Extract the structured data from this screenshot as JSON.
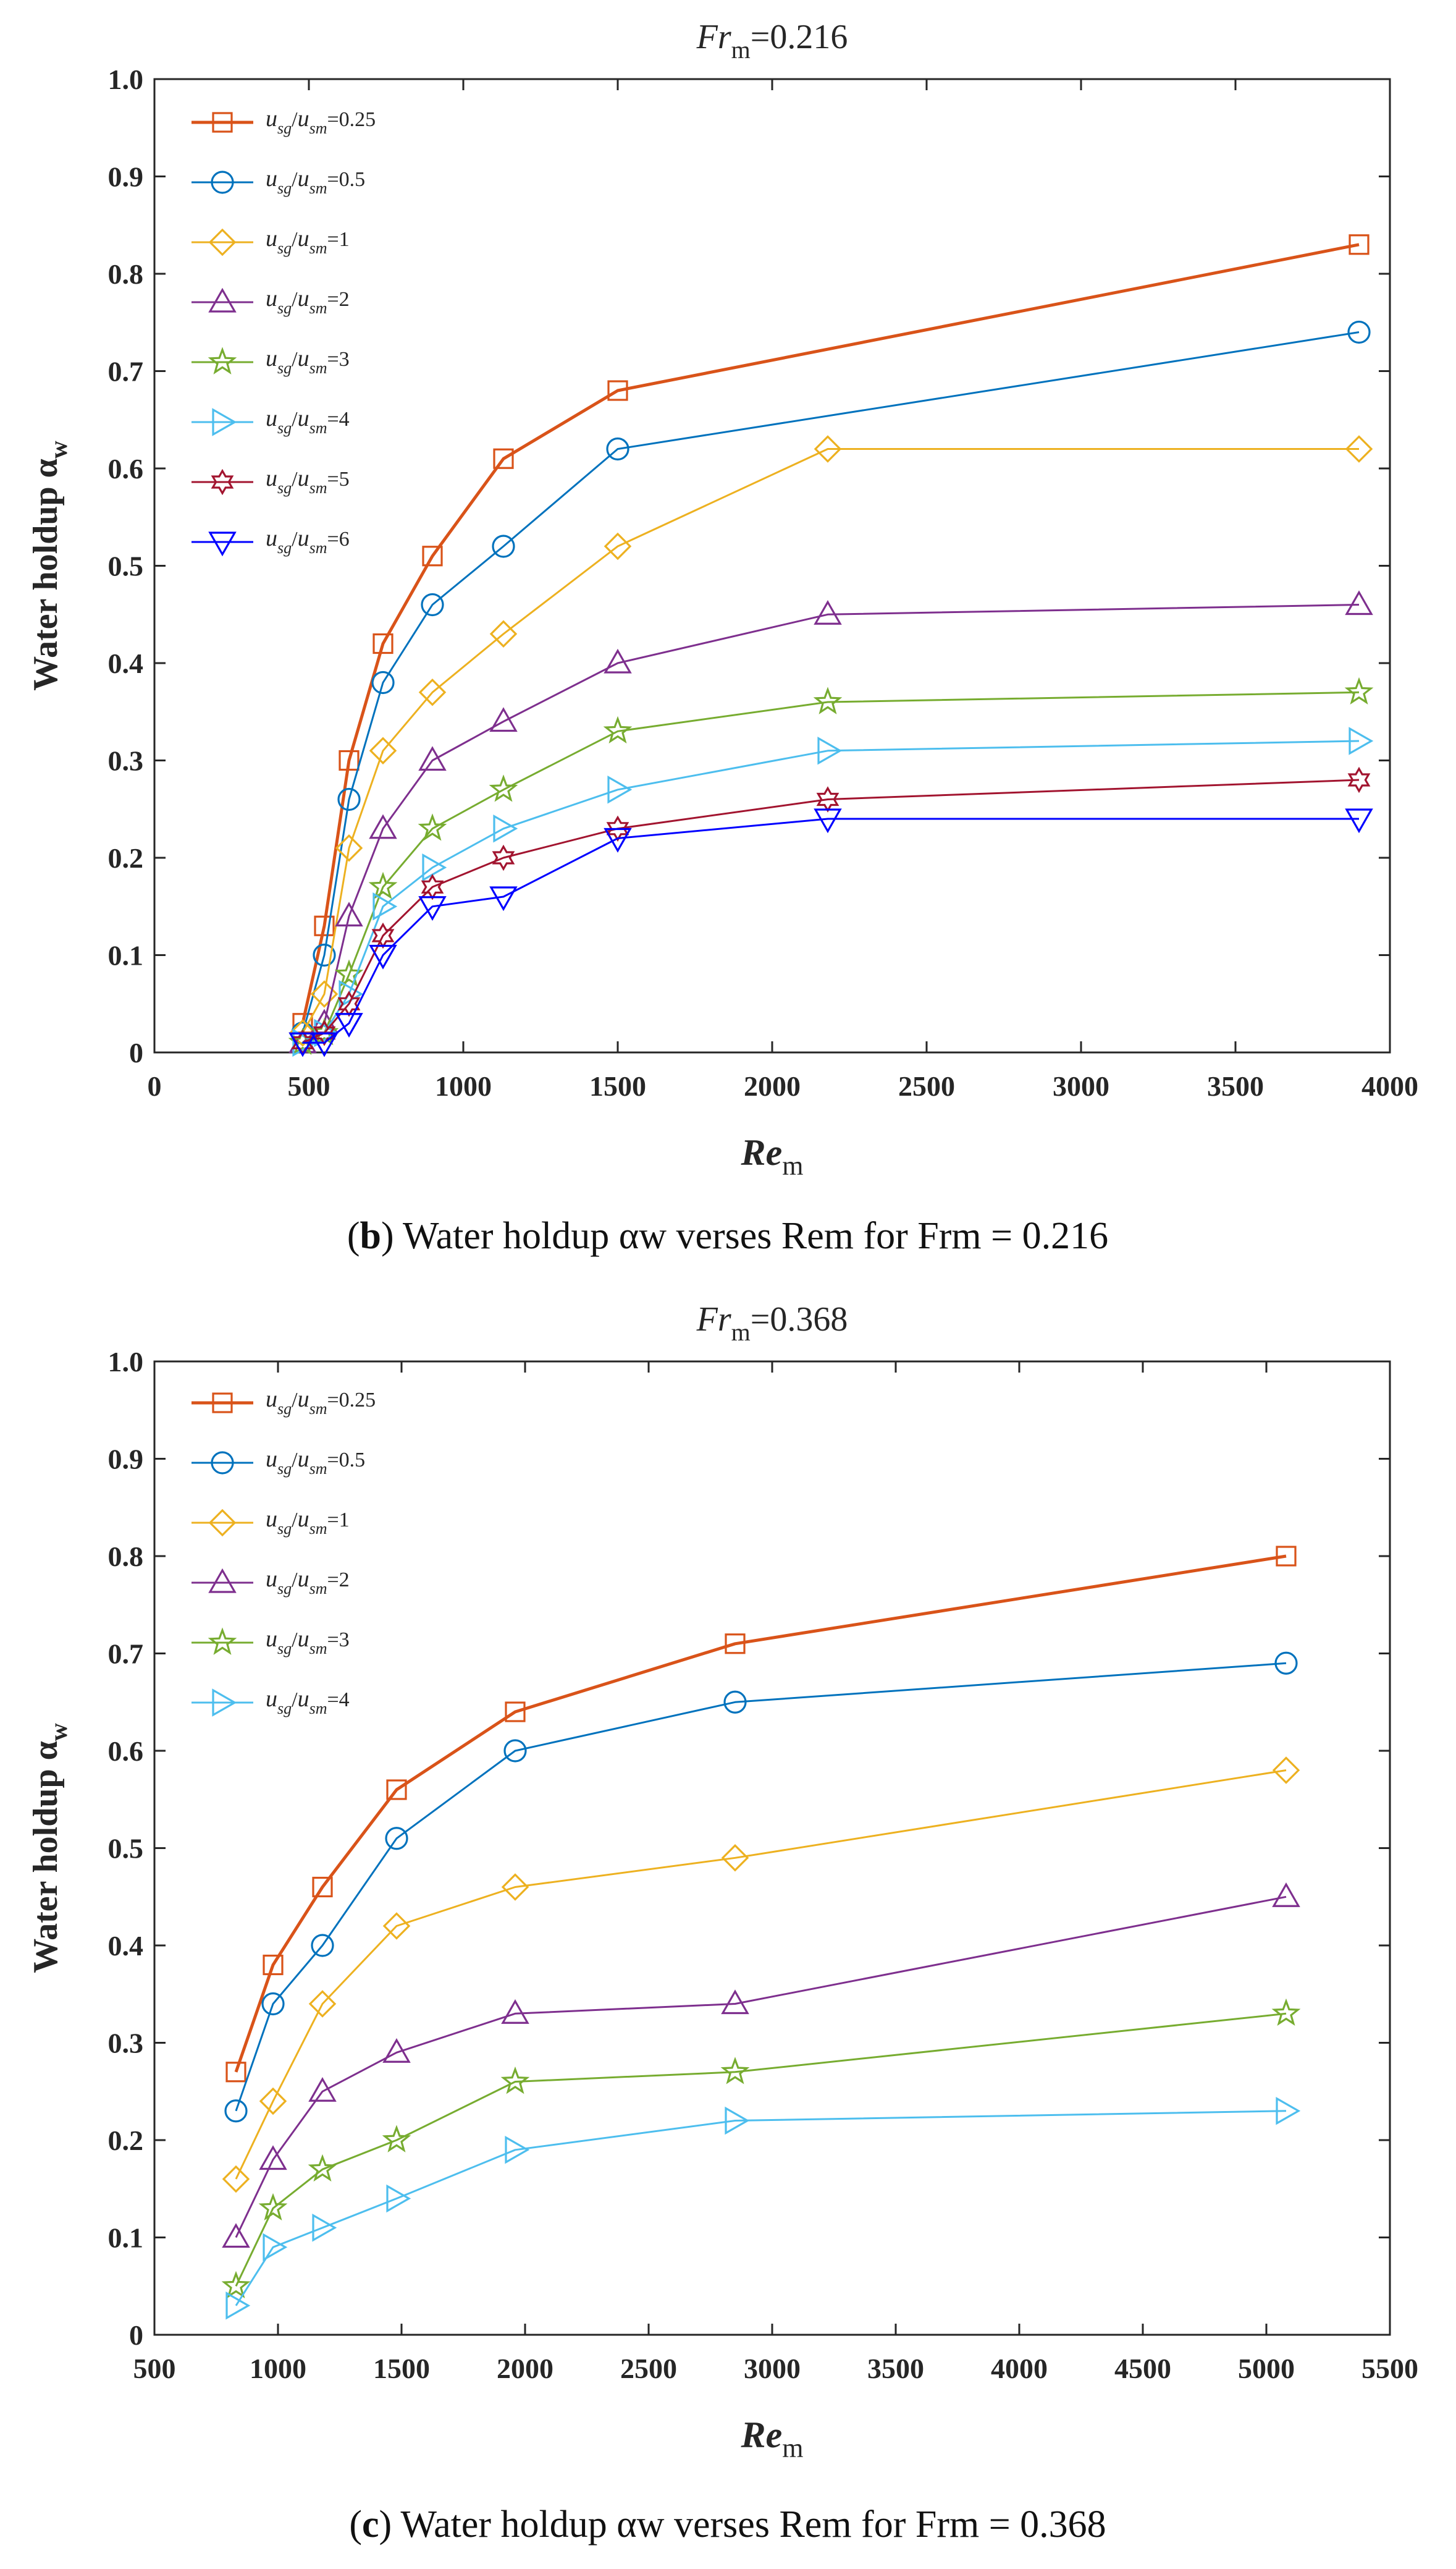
{
  "chart_data": [
    {
      "type": "line",
      "title": "Fr",
      "title_sub": "m",
      "title_value": "=0.216",
      "xlabel": "Re",
      "xlabel_sub": "m",
      "ylabel": "Water holdup α",
      "ylabel_sub": "w",
      "xlim": [
        0,
        4000
      ],
      "ylim": [
        0,
        1.0
      ],
      "xticks": [
        0,
        500,
        1000,
        1500,
        2000,
        2500,
        3000,
        3500,
        4000
      ],
      "xtick_labels": [
        "0",
        "500",
        "1000",
        "1500",
        "2000",
        "2500",
        "3000",
        "3500",
        "4000"
      ],
      "yticks": [
        0,
        0.1,
        0.2,
        0.3,
        0.4,
        0.5,
        0.6,
        0.7,
        0.8,
        0.9,
        1.0
      ],
      "ytick_labels": [
        "0",
        "0.1",
        "0.2",
        "0.3",
        "0.4",
        "0.5",
        "0.6",
        "0.7",
        "0.8",
        "0.9",
        "1.0"
      ],
      "legend_position": "top-left",
      "caption": {
        "letter": "b",
        "text": " Water holdup αw verses Rem for Frm = 0.216"
      },
      "series": [
        {
          "name": "u_sg/u_sm=0.25",
          "legend_value": "=0.25",
          "color": "#D95319",
          "marker": "square",
          "width": 5,
          "x": [
            480,
            550,
            630,
            740,
            900,
            1130,
            1500,
            3900
          ],
          "y": [
            0.03,
            0.13,
            0.3,
            0.42,
            0.51,
            0.61,
            0.68,
            0.83
          ]
        },
        {
          "name": "u_sg/u_sm=0.5",
          "legend_value": "=0.5",
          "color": "#0072BD",
          "marker": "circle",
          "width": 3,
          "x": [
            480,
            550,
            630,
            740,
            900,
            1130,
            1500,
            3900
          ],
          "y": [
            0.02,
            0.1,
            0.26,
            0.38,
            0.46,
            0.52,
            0.62,
            0.74
          ]
        },
        {
          "name": "u_sg/u_sm=1",
          "legend_value": "=1",
          "color": "#EDB120",
          "marker": "diamond",
          "width": 3,
          "x": [
            480,
            550,
            630,
            740,
            900,
            1130,
            1500,
            2180,
            3900
          ],
          "y": [
            0.02,
            0.06,
            0.21,
            0.31,
            0.37,
            0.43,
            0.52,
            0.62,
            0.62
          ]
        },
        {
          "name": "u_sg/u_sm=2",
          "legend_value": "=2",
          "color": "#7E2F8E",
          "marker": "triangle-up",
          "width": 3,
          "x": [
            480,
            550,
            630,
            740,
            900,
            1130,
            1500,
            2180,
            3900
          ],
          "y": [
            0.01,
            0.03,
            0.14,
            0.23,
            0.3,
            0.34,
            0.4,
            0.45,
            0.46
          ]
        },
        {
          "name": "u_sg/u_sm=3",
          "legend_value": "=3",
          "color": "#77AC30",
          "marker": "star",
          "width": 3,
          "x": [
            480,
            550,
            630,
            740,
            900,
            1130,
            1500,
            2180,
            3900
          ],
          "y": [
            0.01,
            0.02,
            0.08,
            0.17,
            0.23,
            0.27,
            0.33,
            0.36,
            0.37
          ]
        },
        {
          "name": "u_sg/u_sm=4",
          "legend_value": "=4",
          "color": "#4DBEEE",
          "marker": "triangle-right",
          "width": 3,
          "x": [
            480,
            550,
            630,
            740,
            900,
            1130,
            1500,
            2180,
            3900
          ],
          "y": [
            0.01,
            0.02,
            0.06,
            0.15,
            0.19,
            0.23,
            0.27,
            0.31,
            0.32
          ]
        },
        {
          "name": "u_sg/u_sm=5",
          "legend_value": "=5",
          "color": "#A2142F",
          "marker": "hexagram",
          "width": 3,
          "x": [
            480,
            550,
            630,
            740,
            900,
            1130,
            1500,
            2180,
            3900
          ],
          "y": [
            0.01,
            0.02,
            0.05,
            0.12,
            0.17,
            0.2,
            0.23,
            0.26,
            0.28
          ]
        },
        {
          "name": "u_sg/u_sm=6",
          "legend_value": "=6",
          "color": "#0000FF",
          "marker": "triangle-down",
          "width": 3,
          "x": [
            480,
            550,
            630,
            740,
            900,
            1130,
            1500,
            2180,
            3900
          ],
          "y": [
            0.01,
            0.01,
            0.03,
            0.1,
            0.15,
            0.16,
            0.22,
            0.24,
            0.24
          ]
        }
      ]
    },
    {
      "type": "line",
      "title": "Fr",
      "title_sub": "m",
      "title_value": "=0.368",
      "xlabel": "Re",
      "xlabel_sub": "m",
      "ylabel": "Water holdup α",
      "ylabel_sub": "w",
      "xlim": [
        500,
        5500
      ],
      "ylim": [
        0,
        1.0
      ],
      "xticks": [
        500,
        1000,
        1500,
        2000,
        2500,
        3000,
        3500,
        4000,
        4500,
        5000,
        5500
      ],
      "xtick_labels": [
        "500",
        "1000",
        "1500",
        "2000",
        "2500",
        "3000",
        "3500",
        "4000",
        "4500",
        "5000",
        "5500"
      ],
      "yticks": [
        0,
        0.1,
        0.2,
        0.3,
        0.4,
        0.5,
        0.6,
        0.7,
        0.8,
        0.9,
        1.0
      ],
      "ytick_labels": [
        "0",
        "0.1",
        "0.2",
        "0.3",
        "0.4",
        "0.5",
        "0.6",
        "0.7",
        "0.8",
        "0.9",
        "1.0"
      ],
      "legend_position": "top-left",
      "caption": {
        "letter": "c",
        "text": " Water holdup αw verses Rem for Frm = 0.368"
      },
      "series": [
        {
          "name": "u_sg/u_sm=0.25",
          "legend_value": "=0.25",
          "color": "#D95319",
          "marker": "square",
          "width": 5,
          "x": [
            830,
            980,
            1180,
            1480,
            1960,
            2850,
            5080
          ],
          "y": [
            0.27,
            0.38,
            0.46,
            0.56,
            0.64,
            0.71,
            0.8
          ]
        },
        {
          "name": "u_sg/u_sm=0.5",
          "legend_value": "=0.5",
          "color": "#0072BD",
          "marker": "circle",
          "width": 3,
          "x": [
            830,
            980,
            1180,
            1480,
            1960,
            2850,
            5080
          ],
          "y": [
            0.23,
            0.34,
            0.4,
            0.51,
            0.6,
            0.65,
            0.69
          ]
        },
        {
          "name": "u_sg/u_sm=1",
          "legend_value": "=1",
          "color": "#EDB120",
          "marker": "diamond",
          "width": 3,
          "x": [
            830,
            980,
            1180,
            1480,
            1960,
            2850,
            5080
          ],
          "y": [
            0.16,
            0.24,
            0.34,
            0.42,
            0.46,
            0.49,
            0.58
          ]
        },
        {
          "name": "u_sg/u_sm=2",
          "legend_value": "=2",
          "color": "#7E2F8E",
          "marker": "triangle-up",
          "width": 3,
          "x": [
            830,
            980,
            1180,
            1480,
            1960,
            2850,
            5080
          ],
          "y": [
            0.1,
            0.18,
            0.25,
            0.29,
            0.33,
            0.34,
            0.45
          ]
        },
        {
          "name": "u_sg/u_sm=3",
          "legend_value": "=3",
          "color": "#77AC30",
          "marker": "star",
          "width": 3,
          "x": [
            830,
            980,
            1180,
            1480,
            1960,
            2850,
            5080
          ],
          "y": [
            0.05,
            0.13,
            0.17,
            0.2,
            0.26,
            0.27,
            0.33
          ]
        },
        {
          "name": "u_sg/u_sm=4",
          "legend_value": "=4",
          "color": "#4DBEEE",
          "marker": "triangle-right",
          "width": 3,
          "x": [
            830,
            980,
            1180,
            1480,
            1960,
            2850,
            5080
          ],
          "y": [
            0.03,
            0.09,
            0.11,
            0.14,
            0.19,
            0.22,
            0.23
          ]
        }
      ]
    }
  ]
}
